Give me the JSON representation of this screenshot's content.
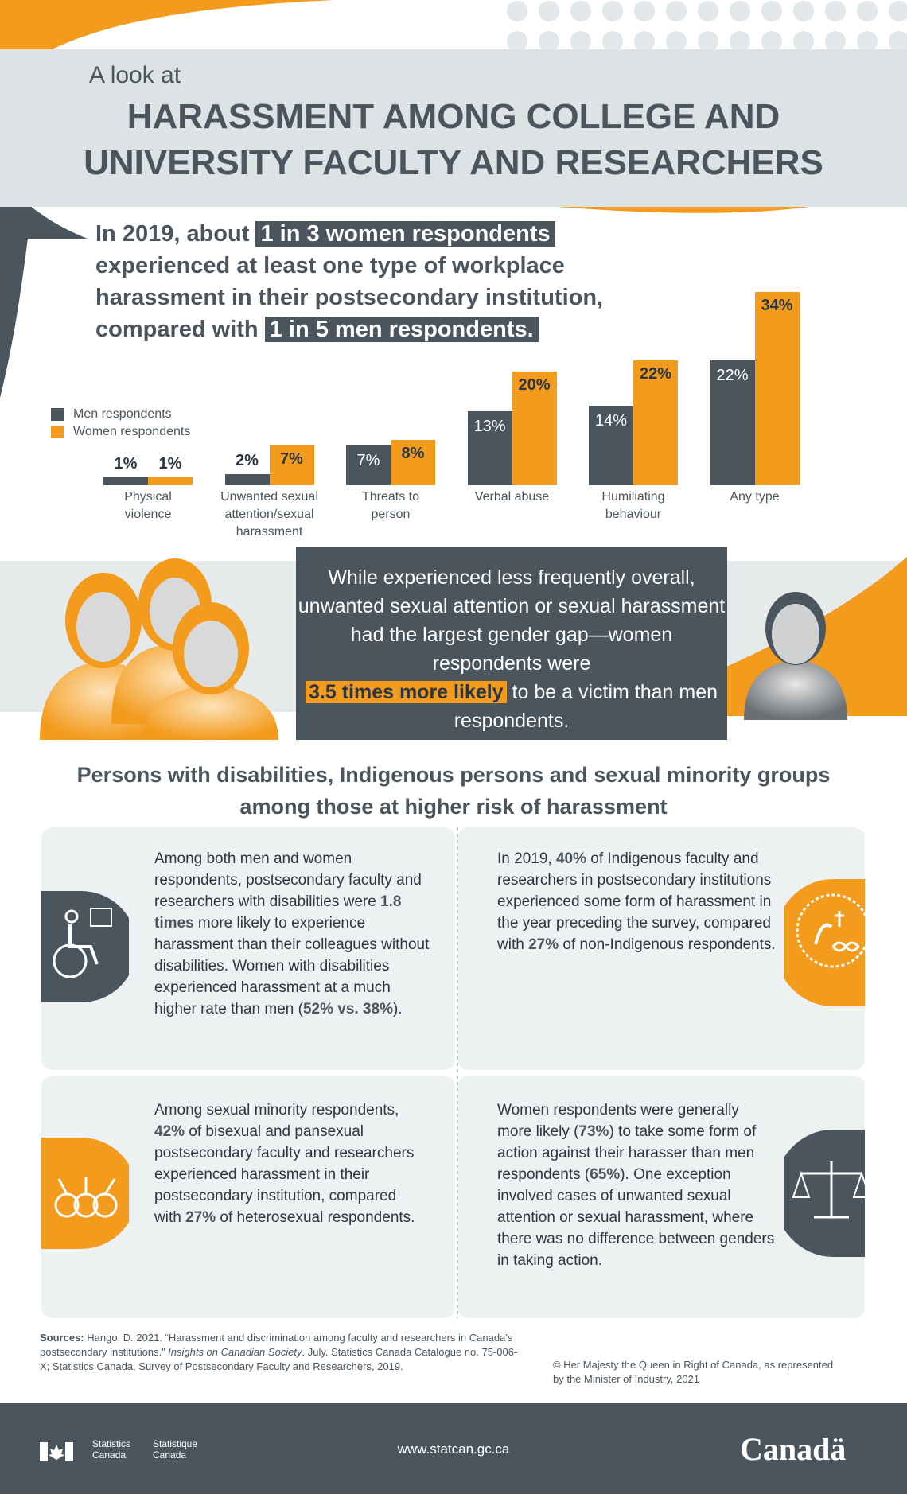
{
  "header": {
    "pre_title": "A look at",
    "title_line1": "HARASSMENT AMONG COLLEGE AND",
    "title_line2": "UNIVERSITY FACULTY AND RESEARCHERS"
  },
  "lead": {
    "part1": "In 2019, about ",
    "hl1": "1 in 3 women respondents",
    "part2": " experienced at least one type of workplace harassment in their postsecondary institution, compared with ",
    "hl2": "1 in 5 men respondents."
  },
  "chart_data": {
    "type": "bar",
    "categories": [
      "Physical violence",
      "Unwanted sexual attention/sexual harassment",
      "Threats to person",
      "Verbal abuse",
      "Humiliating behaviour",
      "Any type"
    ],
    "series": [
      {
        "name": "Men respondents",
        "values": [
          1,
          2,
          7,
          13,
          14,
          22
        ],
        "color": "#4a555e"
      },
      {
        "name": "Women respondents",
        "values": [
          1,
          7,
          8,
          20,
          22,
          34
        ],
        "color": "#f39b1d"
      }
    ],
    "value_labels_men": [
      "1%",
      "2%",
      "7%",
      "13%",
      "14%",
      "22%"
    ],
    "value_labels_women": [
      "1%",
      "7%",
      "8%",
      "20%",
      "22%",
      "34%"
    ],
    "category_lines": [
      [
        "Physical",
        "violence"
      ],
      [
        "Unwanted sexual",
        "attention/sexual",
        "harassment"
      ],
      [
        "Threats to",
        "person"
      ],
      [
        "Verbal abuse"
      ],
      [
        "Humiliating",
        "behaviour"
      ],
      [
        "Any type"
      ]
    ],
    "legend": [
      "Men respondents",
      "Women respondents"
    ],
    "legend_position": "left"
  },
  "callout": {
    "line1": "While experienced less frequently overall, unwanted sexual attention or sexual harassment had the largest gender gap—women respondents were",
    "emph": "3.5 times more likely",
    "line2": " to be a victim than men respondents."
  },
  "subhead": {
    "line1": "Persons with disabilities, Indigenous persons and sexual minority groups",
    "line2": "among those at higher risk of harassment"
  },
  "cards": {
    "disabilities": {
      "t1": "Among both men and women respondents, postsecondary faculty and researchers with disabilities were ",
      "b1": "1.8 times",
      "t2": " more likely to experience harassment than their colleagues without disabilities. Women with disabilities experienced harassment at a much higher rate than men (",
      "b2": "52% vs. 38%",
      "t3": ")."
    },
    "indigenous": {
      "t1": "In 2019, ",
      "b1": "40%",
      "t2": " of Indigenous faculty and researchers in postsecondary institutions experienced some form of harassment in the year preceding the survey, compared with ",
      "b2": "27%",
      "t3": " of non-Indigenous respondents."
    },
    "sexual_minority": {
      "t1": "Among sexual minority respondents, ",
      "b1": "42%",
      "t2": " of bisexual and pansexual postsecondary faculty and researchers experienced harassment in their postsecondary institution, compared with ",
      "b2": "27%",
      "t3": " of heterosexual respondents."
    },
    "action": {
      "t1": "Women respondents were generally more likely (",
      "b1": "73%",
      "t2": ") to take some form of action against their harasser than men respondents (",
      "b2": "65%",
      "t3": "). One exception involved cases of unwanted sexual attention or sexual harassment, where there was no difference between genders in taking action."
    }
  },
  "sources": {
    "label": "Sources:",
    "t1": " Hango, D. 2021. “Harassment and discrimination among faculty and researchers in Canada’s postsecondary institutions.” ",
    "ital": "Insights on Canadian Society",
    "t2": ". July. Statistics Canada Catalogue no. 75-006-X; Statistics Canada, Survey of Postsecondary Faculty and Researchers, 2019."
  },
  "copyright": "© Her Majesty the Queen in Right of Canada, as represented by the Minister of Industry, 2021",
  "footer": {
    "agency_en_1": "Statistics",
    "agency_en_2": "Canada",
    "agency_fr_1": "Statistique",
    "agency_fr_2": "Canada",
    "url": "www.statcan.gc.ca",
    "wordmark": "Canadä"
  },
  "colors": {
    "slate": "#4a555e",
    "orange": "#f39b1d",
    "light": "#dde3e5"
  },
  "icons": [
    "women-figures-icon",
    "man-figure-icon",
    "wheelchair-icon",
    "indigenous-symbol-icon",
    "gender-symbols-icon",
    "scales-of-justice-icon",
    "canada-flag-icon"
  ]
}
